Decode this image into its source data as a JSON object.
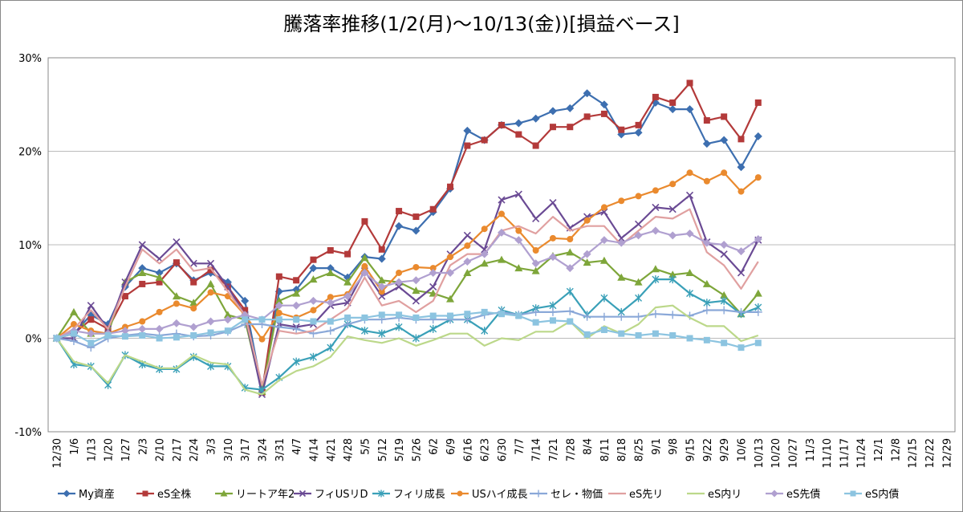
{
  "chart_data": {
    "type": "line",
    "title": "騰落率推移(1/2(月)～10/13(金))[損益ベース]",
    "categories": [
      "12/30",
      "1/6",
      "1/13",
      "1/20",
      "1/27",
      "2/3",
      "2/10",
      "2/17",
      "2/24",
      "3/3",
      "3/10",
      "3/17",
      "3/24",
      "3/31",
      "4/7",
      "4/14",
      "4/21",
      "4/28",
      "5/5",
      "5/12",
      "5/19",
      "5/26",
      "6/2",
      "6/9",
      "6/16",
      "6/23",
      "6/30",
      "7/7",
      "7/14",
      "7/21",
      "7/28",
      "8/4",
      "8/11",
      "8/18",
      "8/25",
      "9/1",
      "9/8",
      "9/15",
      "9/22",
      "9/29",
      "10/6",
      "10/13",
      "10/20",
      "10/27",
      "11/3",
      "11/10",
      "11/17",
      "11/24",
      "12/1",
      "12/8",
      "12/15",
      "12/22",
      "12/29"
    ],
    "ylim": [
      -10,
      30
    ],
    "yticks": [
      {
        "value": -10,
        "label": "-10%"
      },
      {
        "value": 0,
        "label": "0%"
      },
      {
        "value": 10,
        "label": "10%"
      },
      {
        "value": 20,
        "label": "20%"
      },
      {
        "value": 30,
        "label": "30%"
      }
    ],
    "grid": true,
    "legend": "bottom",
    "series": [
      {
        "name": "My資産",
        "color": "#3d6fb0",
        "marker": "diamond",
        "values": [
          0,
          0.5,
          2.5,
          1.5,
          5.5,
          7.5,
          7,
          8,
          6.2,
          7,
          6,
          4,
          -5.5,
          5,
          5.2,
          7.5,
          7.5,
          6.5,
          8.7,
          8.5,
          12,
          11.5,
          13.5,
          16,
          22.2,
          21.2,
          22.8,
          23,
          23.5,
          24.3,
          24.6,
          26.2,
          25,
          21.8,
          22,
          25.2,
          24.5,
          24.5,
          20.8,
          21.2,
          18.3,
          21.6,
          null,
          null,
          null,
          null,
          null,
          null,
          null,
          null,
          null,
          null,
          null
        ]
      },
      {
        "name": "eS全株",
        "color": "#b33a3a",
        "marker": "square",
        "values": [
          0,
          0.5,
          2,
          1,
          4.5,
          5.8,
          6,
          8.1,
          6,
          7.3,
          5.5,
          3,
          -5.8,
          6.6,
          6.2,
          8.4,
          9.4,
          9,
          12.5,
          9.5,
          13.6,
          13,
          13.8,
          16.2,
          20.6,
          21.2,
          22.8,
          21.8,
          20.6,
          22.6,
          22.6,
          23.7,
          24,
          22.3,
          22.8,
          25.8,
          25.2,
          27.3,
          23.3,
          23.7,
          21.3,
          25.2,
          null,
          null,
          null,
          null,
          null,
          null,
          null,
          null,
          null,
          null,
          null
        ]
      },
      {
        "name": "リートア年2",
        "color": "#7ea63a",
        "marker": "triangle",
        "values": [
          0,
          2.8,
          0.5,
          0.5,
          6,
          7,
          6.5,
          4.5,
          3.8,
          5.8,
          2.5,
          2,
          -5.7,
          4,
          4.8,
          6.3,
          7,
          6,
          8.6,
          6.2,
          6,
          5.1,
          4.8,
          4.2,
          7,
          8,
          8.4,
          7.5,
          7.2,
          8.8,
          9.2,
          8.1,
          8.3,
          6.5,
          6,
          7.4,
          6.8,
          7,
          5.8,
          4.6,
          2.6,
          4.8,
          null,
          null,
          null,
          null,
          null,
          null,
          null,
          null,
          null,
          null,
          null
        ]
      },
      {
        "name": "フィUSリD",
        "color": "#6a4a94",
        "marker": "x",
        "values": [
          0,
          0,
          3.5,
          1,
          6,
          10,
          8.5,
          10.3,
          8,
          8,
          5.5,
          2.5,
          -6,
          1.5,
          1.2,
          1.5,
          3.5,
          3.8,
          7.2,
          4.5,
          5.5,
          4,
          5.5,
          9,
          11,
          9.5,
          14.8,
          15.4,
          12.8,
          14.5,
          11.8,
          13,
          13.5,
          10.7,
          12.2,
          14,
          13.8,
          15.3,
          10.3,
          9,
          7,
          10.5,
          null,
          null,
          null,
          null,
          null,
          null,
          null,
          null,
          null,
          null,
          null
        ]
      },
      {
        "name": "フィリ成長",
        "color": "#3aa0b8",
        "marker": "asterisk",
        "values": [
          0,
          -2.8,
          -3,
          -5,
          -1.8,
          -2.8,
          -3.3,
          -3.3,
          -2,
          -3,
          -3,
          -5.3,
          -5.5,
          -4.2,
          -2.5,
          -2,
          -1,
          1.5,
          0.8,
          0.5,
          1.2,
          0,
          1,
          2,
          2,
          0.8,
          3,
          2.5,
          3.2,
          3.5,
          5,
          2.5,
          4.3,
          2.8,
          4.3,
          6.3,
          6.3,
          4.8,
          3.8,
          4,
          2.6,
          3.3,
          null,
          null,
          null,
          null,
          null,
          null,
          null,
          null,
          null,
          null,
          null
        ]
      },
      {
        "name": "USハイ成長",
        "color": "#ea8a2e",
        "marker": "circle",
        "values": [
          0,
          1.5,
          0.8,
          0.5,
          1.2,
          1.8,
          2.8,
          3.7,
          3.2,
          4.9,
          4.5,
          2.5,
          -0.1,
          2.7,
          2.2,
          3,
          4.4,
          4.7,
          7.7,
          5,
          7,
          7.6,
          7.5,
          8.7,
          9.9,
          11.7,
          13.3,
          11.5,
          9.4,
          10.7,
          10.6,
          12.6,
          14,
          14.7,
          15.2,
          15.8,
          16.5,
          17.7,
          16.8,
          17.7,
          15.7,
          17.2,
          null,
          null,
          null,
          null,
          null,
          null,
          null,
          null,
          null,
          null,
          null
        ]
      },
      {
        "name": "セレ・物価",
        "color": "#8aa8d8",
        "marker": "plus",
        "values": [
          0,
          -0.3,
          -1,
          0,
          0.3,
          0.5,
          0.3,
          0.5,
          0.2,
          0.3,
          0.7,
          1.5,
          1.5,
          1.2,
          1,
          0.5,
          0.8,
          1.5,
          2,
          2,
          2.2,
          2,
          2,
          2,
          2,
          2.5,
          2.8,
          2.5,
          2.8,
          2.8,
          2.9,
          2.3,
          2.3,
          2.3,
          2.3,
          2.6,
          2.5,
          2.4,
          3,
          3,
          2.8,
          2.8,
          null,
          null,
          null,
          null,
          null,
          null,
          null,
          null,
          null,
          null,
          null
        ]
      },
      {
        "name": "eS先リ",
        "color": "#e0a0a0",
        "marker": "none",
        "values": [
          0,
          1,
          3,
          1,
          5.5,
          9.5,
          8,
          9.5,
          7.2,
          7.5,
          5,
          2.5,
          -5,
          0.8,
          0.5,
          0.8,
          2,
          3.2,
          6.5,
          3.5,
          4,
          2.8,
          4,
          7.8,
          9,
          9,
          11.5,
          12,
          11.2,
          13,
          11.5,
          12,
          12,
          10,
          11.5,
          13,
          12.8,
          13.8,
          9.2,
          7.8,
          5.3,
          8.2,
          null,
          null,
          null,
          null,
          null,
          null,
          null,
          null,
          null,
          null,
          null
        ]
      },
      {
        "name": "eS内リ",
        "color": "#bcd88a",
        "marker": "none",
        "values": [
          0,
          -2.5,
          -3,
          -4.8,
          -1.8,
          -2.5,
          -3.2,
          -3.2,
          -1.8,
          -2.6,
          -2.8,
          -5.5,
          -6,
          -4.5,
          -3.5,
          -3,
          -2,
          0.2,
          -0.2,
          -0.5,
          0,
          -0.8,
          -0.2,
          0.5,
          0.5,
          -0.8,
          0,
          -0.2,
          0.7,
          0.7,
          1.8,
          0,
          1.3,
          0.5,
          1.5,
          3.3,
          3.5,
          2.2,
          1.3,
          1.3,
          -0.3,
          0.3,
          null,
          null,
          null,
          null,
          null,
          null,
          null,
          null,
          null,
          null,
          null
        ]
      },
      {
        "name": "eS先債",
        "color": "#b0a0d0",
        "marker": "diamond",
        "values": [
          0,
          0.8,
          0.5,
          0.5,
          0.8,
          1,
          1,
          1.6,
          1.2,
          1.8,
          2,
          2.5,
          2,
          3.5,
          3.5,
          4,
          3.8,
          4.5,
          7,
          5.5,
          6,
          6.2,
          7,
          7,
          8.2,
          9,
          11.3,
          10.5,
          8,
          8.7,
          7.5,
          9,
          10.5,
          10.2,
          11,
          11.5,
          11,
          11.2,
          10.2,
          10,
          9.3,
          10.6,
          null,
          null,
          null,
          null,
          null,
          null,
          null,
          null,
          null,
          null,
          null
        ]
      },
      {
        "name": "eS内債",
        "color": "#8cc4e0",
        "marker": "square",
        "values": [
          0,
          0.5,
          -0.5,
          0.3,
          0.2,
          0.3,
          0,
          0.1,
          0.3,
          0.6,
          0.8,
          2,
          2,
          2,
          2,
          1.8,
          1.8,
          2.2,
          2.2,
          2.5,
          2.5,
          2.2,
          2.4,
          2.4,
          2.6,
          2.8,
          2.6,
          2.4,
          1.7,
          1.9,
          1.8,
          0.4,
          0.9,
          0.5,
          0.3,
          0.5,
          0.3,
          0,
          -0.2,
          -0.5,
          -1,
          -0.5,
          null,
          null,
          null,
          null,
          null,
          null,
          null,
          null,
          null,
          null,
          null
        ]
      }
    ]
  }
}
